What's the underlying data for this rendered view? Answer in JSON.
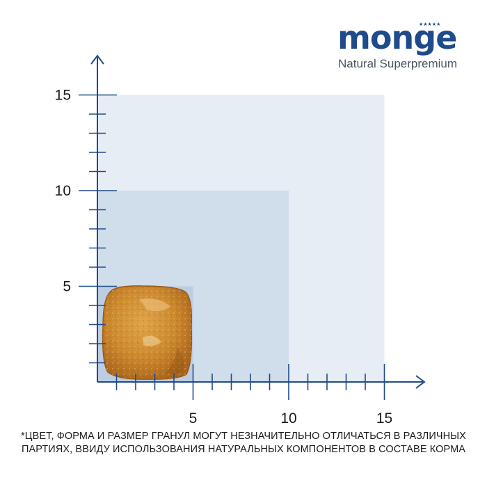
{
  "brand": {
    "name": "monge",
    "tagline": "Natural Superpremium",
    "stars": "★★★★★",
    "color": "#1f4a8c"
  },
  "size_chart": {
    "y_tick_labels": [
      "5",
      "10",
      "15"
    ],
    "x_tick_labels": [
      "5",
      "10",
      "15"
    ],
    "squares": [
      15,
      10,
      5
    ],
    "kibble_size": 5,
    "axis_color": "#1f4a8c",
    "square_colors": [
      "#e6edf5",
      "#d0ddeb",
      "#bccde2"
    ]
  },
  "footnote": {
    "line1": "*ЦВЕТ, ФОРМА И РАЗМЕР ГРАНУЛ МОГУТ НЕЗНАЧИТЕЛЬНО ОТЛИЧАТЬСЯ  В РАЗЛИЧНЫХ",
    "line2": "ПАРТИЯХ, ВВИДУ ИСПОЛЬЗОВАНИЯ НАТУРАЛЬНЫХ КОМПОНЕНТОВ В СОСТАВЕ  КОРМА"
  }
}
